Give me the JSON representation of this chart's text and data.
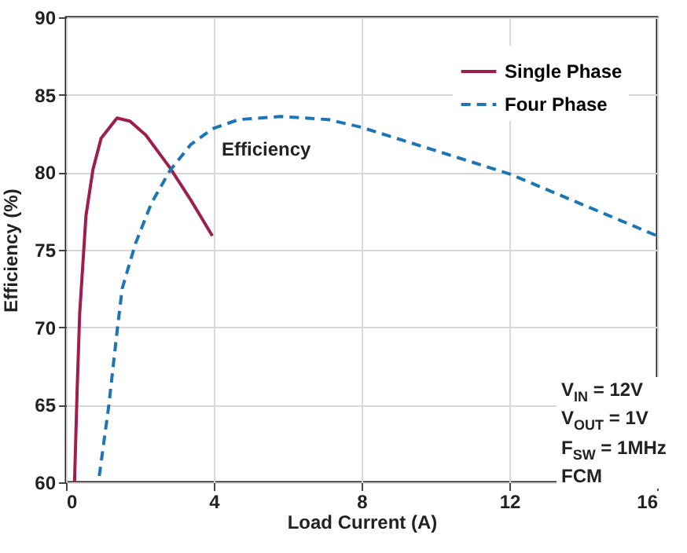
{
  "chart_data": {
    "type": "line",
    "xlabel": "Load Current (A)",
    "ylabel": "Efficiency (%)",
    "xlim": [
      0,
      16
    ],
    "xticks": [
      0,
      4,
      8,
      12,
      16
    ],
    "ylim": [
      60,
      90
    ],
    "yticks": [
      60,
      65,
      70,
      75,
      80,
      85,
      90
    ],
    "grid": true,
    "legend": "top right",
    "annotations": [
      "Efficiency",
      "V$_{IN}$ = 12V",
      "V$_{OUT}$ = 1V",
      "F$_{SW}$ = 1MHz",
      "FCM"
    ],
    "series": [
      {
        "name": "Single Phase",
        "color": "#9e1f4f",
        "line_style": "solid",
        "x": [
          0.23,
          0.3,
          0.37,
          0.54,
          0.73,
          0.95,
          1.38,
          1.73,
          2.16,
          2.81,
          3.38,
          3.96
        ],
        "values": [
          60,
          65.9,
          70.9,
          77.2,
          80.2,
          82.2,
          83.5,
          83.3,
          82.4,
          80.3,
          78.2,
          75.9
        ]
      },
      {
        "name": "Four Phase",
        "color": "#1c75b5",
        "line_style": "dashed",
        "x": [
          0.9,
          1.16,
          1.38,
          1.52,
          1.88,
          2.31,
          2.81,
          3.38,
          3.96,
          4.67,
          5.8,
          7.1,
          8,
          10,
          12,
          13.9,
          16
        ],
        "values": [
          60.4,
          65,
          69.7,
          72.5,
          75.4,
          78,
          80.1,
          81.8,
          82.8,
          83.4,
          83.6,
          83.4,
          82.9,
          81.4,
          79.9,
          78,
          75.9
        ]
      }
    ]
  }
}
